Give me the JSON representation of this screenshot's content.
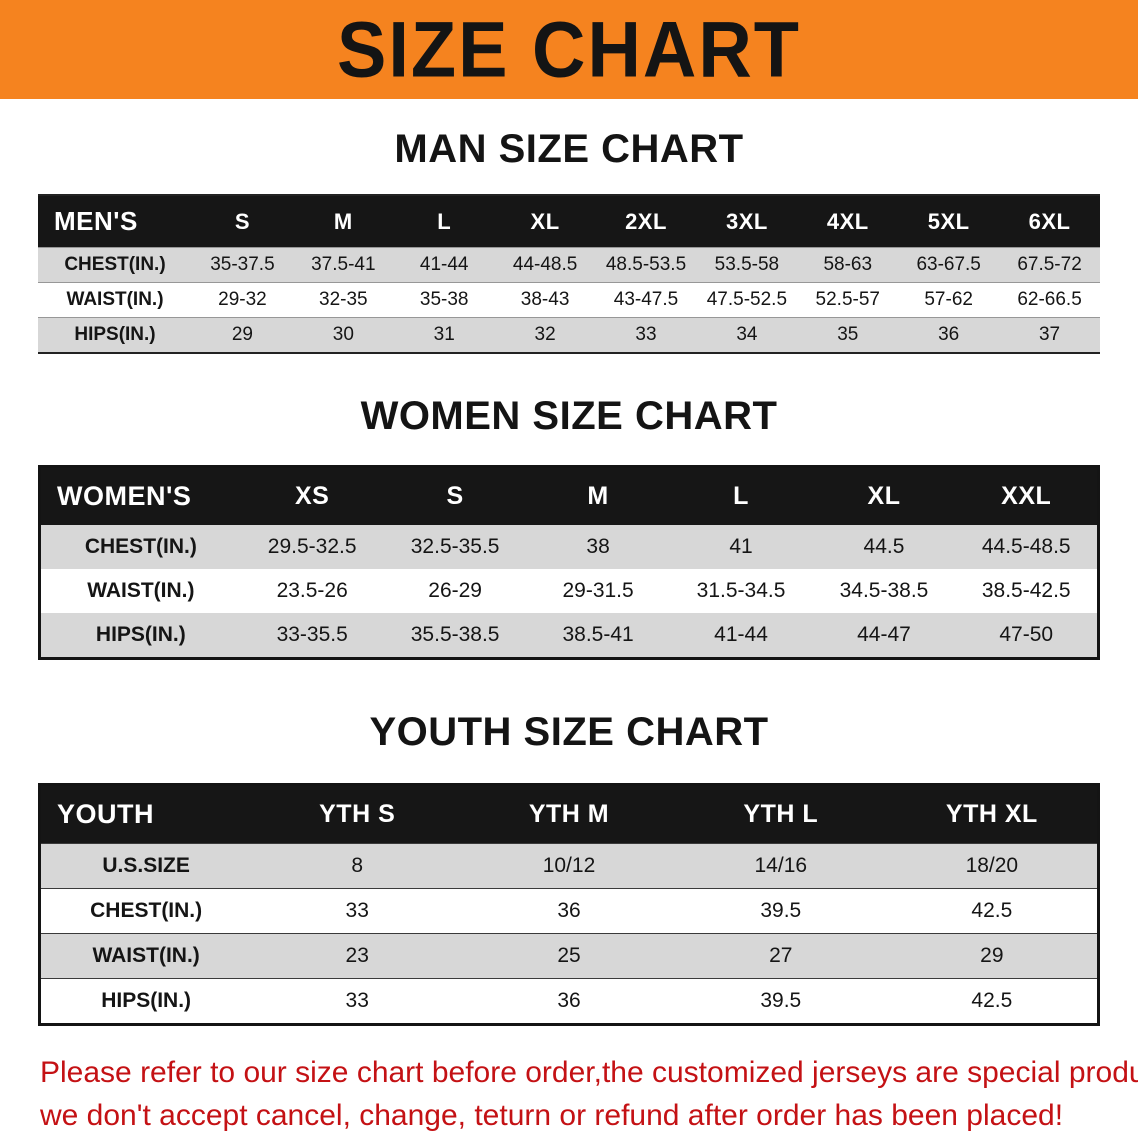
{
  "banner": {
    "title": "SIZE CHART",
    "background_color": "#F5831F",
    "text_color": "#141414"
  },
  "colors": {
    "table_header_bg": "#161616",
    "row_stripe_gray": "#D7D7D7",
    "disclaimer_red": "#C41114"
  },
  "sections": [
    {
      "id": "men",
      "heading": "MAN SIZE CHART",
      "table": {
        "header": [
          "MEN'S",
          "S",
          "M",
          "L",
          "XL",
          "2XL",
          "3XL",
          "4XL",
          "5XL",
          "6XL"
        ],
        "rows": [
          [
            "CHEST(IN.)",
            "35-37.5",
            "37.5-41",
            "41-44",
            "44-48.5",
            "48.5-53.5",
            "53.5-58",
            "58-63",
            "63-67.5",
            "67.5-72"
          ],
          [
            "WAIST(IN.)",
            "29-32",
            "32-35",
            "35-38",
            "38-43",
            "43-47.5",
            "47.5-52.5",
            "52.5-57",
            "57-62",
            "62-66.5"
          ],
          [
            "HIPS(IN.)",
            "29",
            "30",
            "31",
            "32",
            "33",
            "34",
            "35",
            "36",
            "37"
          ]
        ]
      }
    },
    {
      "id": "women",
      "heading": "WOMEN SIZE CHART",
      "table": {
        "header": [
          "WOMEN'S",
          "XS",
          "S",
          "M",
          "L",
          "XL",
          "XXL"
        ],
        "rows": [
          [
            "CHEST(IN.)",
            "29.5-32.5",
            "32.5-35.5",
            "38",
            "41",
            "44.5",
            "44.5-48.5"
          ],
          [
            "WAIST(IN.)",
            "23.5-26",
            "26-29",
            "29-31.5",
            "31.5-34.5",
            "34.5-38.5",
            "38.5-42.5"
          ],
          [
            "HIPS(IN.)",
            "33-35.5",
            "35.5-38.5",
            "38.5-41",
            "41-44",
            "44-47",
            "47-50"
          ]
        ]
      }
    },
    {
      "id": "youth",
      "heading": "YOUTH SIZE CHART",
      "table": {
        "header": [
          "YOUTH",
          "YTH S",
          "YTH M",
          "YTH L",
          "YTH XL"
        ],
        "rows": [
          [
            "U.S.SIZE",
            "8",
            "10/12",
            "14/16",
            "18/20"
          ],
          [
            "CHEST(IN.)",
            "33",
            "36",
            "39.5",
            "42.5"
          ],
          [
            "WAIST(IN.)",
            "23",
            "25",
            "27",
            "29"
          ],
          [
            "HIPS(IN.)",
            "33",
            "36",
            "39.5",
            "42.5"
          ]
        ]
      }
    }
  ],
  "disclaimer": {
    "line1": "Please refer to our size chart before order,the customized jerseys are special products,",
    "line2": "we don't accept cancel, change, teturn or refund after order has been placed!"
  }
}
